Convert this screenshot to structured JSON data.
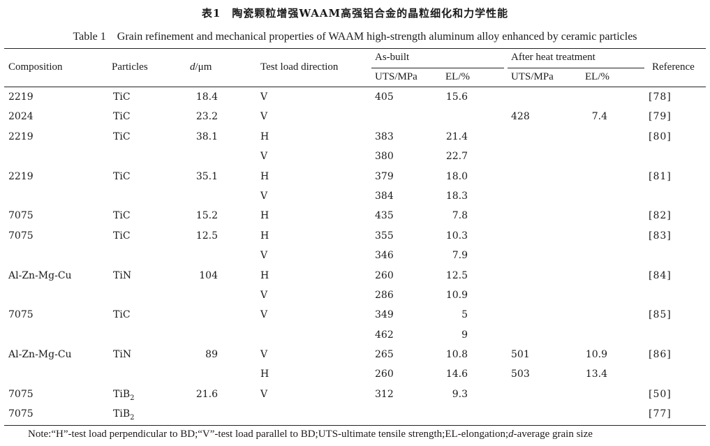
{
  "title": {
    "cn": "表1　陶瓷颗粒增强WAAM高强铝合金的晶粒细化和力学性能",
    "en": "Table 1　Grain refinement and mechanical properties of WAAM high-strength aluminum alloy enhanced by ceramic particles"
  },
  "headers": {
    "composition": "Composition",
    "particles": "Particles",
    "d_symbol": "d",
    "d_unit": "/μm",
    "test_load_direction": "Test load direction",
    "as_built": "As-built",
    "after_heat_treatment": "After heat treatment",
    "uts": "UTS/MPa",
    "el": "EL/%",
    "reference": "Reference"
  },
  "rows": [
    {
      "composition": "2219",
      "particles": "TiC",
      "d": "18.4",
      "direction": "V",
      "uts": "405",
      "el": "15.6",
      "uts_ht": "",
      "el_ht": "",
      "reference": "[78]"
    },
    {
      "composition": "2024",
      "particles": "TiC",
      "d": "23.2",
      "direction": "V",
      "uts": "",
      "el": "",
      "uts_ht": "428",
      "el_ht": "7.4",
      "reference": "[79]"
    },
    {
      "composition": "2219",
      "particles": "TiC",
      "d": "38.1",
      "direction": "H",
      "uts": "383",
      "el": "21.4",
      "uts_ht": "",
      "el_ht": "",
      "reference": "[80]"
    },
    {
      "composition": "",
      "particles": "",
      "d": "",
      "direction": "V",
      "uts": "380",
      "el": "22.7",
      "uts_ht": "",
      "el_ht": "",
      "reference": ""
    },
    {
      "composition": "2219",
      "particles": "TiC",
      "d": "35.1",
      "direction": "H",
      "uts": "379",
      "el": "18.0",
      "uts_ht": "",
      "el_ht": "",
      "reference": "[81]"
    },
    {
      "composition": "",
      "particles": "",
      "d": "",
      "direction": "V",
      "uts": "384",
      "el": "18.3",
      "uts_ht": "",
      "el_ht": "",
      "reference": ""
    },
    {
      "composition": "7075",
      "particles": "TiC",
      "d": "15.2",
      "direction": "H",
      "uts": "435",
      "el": "7.8",
      "uts_ht": "",
      "el_ht": "",
      "reference": "[82]"
    },
    {
      "composition": "7075",
      "particles": "TiC",
      "d": "12.5",
      "direction": "H",
      "uts": "355",
      "el": "10.3",
      "uts_ht": "",
      "el_ht": "",
      "reference": "[83]"
    },
    {
      "composition": "",
      "particles": "",
      "d": "",
      "direction": "V",
      "uts": "346",
      "el": "7.9",
      "uts_ht": "",
      "el_ht": "",
      "reference": ""
    },
    {
      "composition": "Al-Zn-Mg-Cu",
      "particles": "TiN",
      "d": "104",
      "direction": "H",
      "uts": "260",
      "el": "12.5",
      "uts_ht": "",
      "el_ht": "",
      "reference": "[84]"
    },
    {
      "composition": "",
      "particles": "",
      "d": "",
      "direction": "V",
      "uts": "286",
      "el": "10.9",
      "uts_ht": "",
      "el_ht": "",
      "reference": ""
    },
    {
      "composition": "7075",
      "particles": "TiC",
      "d": "",
      "direction": "V",
      "uts": "349",
      "el": "5",
      "uts_ht": "",
      "el_ht": "",
      "reference": "[85]"
    },
    {
      "composition": "",
      "particles": "",
      "d": "",
      "direction": "",
      "uts": "462",
      "el": "9",
      "uts_ht": "",
      "el_ht": "",
      "reference": ""
    },
    {
      "composition": "Al-Zn-Mg-Cu",
      "particles": "TiN",
      "d": "89",
      "direction": "V",
      "uts": "265",
      "el": "10.8",
      "uts_ht": "501",
      "el_ht": "10.9",
      "reference": "[86]"
    },
    {
      "composition": "",
      "particles": "",
      "d": "",
      "direction": "H",
      "uts": "260",
      "el": "14.6",
      "uts_ht": "503",
      "el_ht": "13.4",
      "reference": ""
    },
    {
      "composition": "7075",
      "particles": "TiB",
      "particles_sub": "2",
      "d": "21.6",
      "direction": "V",
      "uts": "312",
      "el": "9.3",
      "uts_ht": "",
      "el_ht": "",
      "reference": "[50]"
    },
    {
      "composition": "7075",
      "particles": "TiB",
      "particles_sub": "2",
      "d": "",
      "direction": "",
      "uts": "",
      "el": "",
      "uts_ht": "",
      "el_ht": "",
      "reference": "[77]"
    }
  ],
  "note": {
    "part1": "Note:“H”-test load perpendicular to BD;“V”-test load parallel to BD;UTS-ultimate tensile strength;EL-elongation;",
    "d_symbol": "d",
    "part2": "-average grain size"
  }
}
